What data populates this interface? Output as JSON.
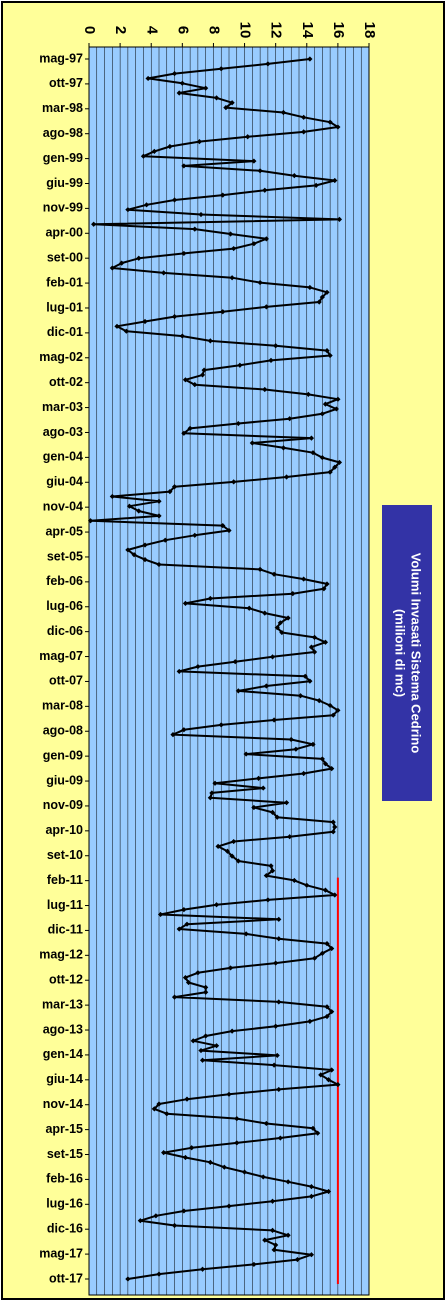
{
  "chart_data": {
    "type": "line",
    "orientation": "rotated-90",
    "title": "Volumi Invasati Sistema Cedrino",
    "subtitle": "(milioni di mc)",
    "ylim": [
      0,
      18
    ],
    "y_ticks": [
      "0",
      "2",
      "4",
      "6",
      "8",
      "10",
      "12",
      "14",
      "16",
      "18"
    ],
    "grid": true,
    "x_tick_labels": [
      "mag-97",
      "ott-97",
      "mar-98",
      "ago-98",
      "gen-99",
      "giu-99",
      "nov-99",
      "apr-00",
      "set-00",
      "feb-01",
      "lug-01",
      "dic-01",
      "mag-02",
      "ott-02",
      "mar-03",
      "ago-03",
      "gen-04",
      "giu-04",
      "nov-04",
      "apr-05",
      "set-05",
      "feb-06",
      "lug-06",
      "dic-06",
      "mag-07",
      "ott-07",
      "mar-08",
      "ago-08",
      "gen-09",
      "giu-09",
      "nov-09",
      "apr-10",
      "set-10",
      "feb-11",
      "lug-11",
      "dic-11",
      "mag-12",
      "ott-12",
      "mar-13",
      "ago-13",
      "gen-14",
      "giu-14",
      "nov-14",
      "apr-15",
      "set-15",
      "feb-16",
      "lug-16",
      "dic-16",
      "mag-17",
      "ott-17"
    ],
    "series": [
      {
        "color": "#000000",
        "values": [
          14.2,
          11.5,
          8.5,
          5.5,
          3.8,
          6.0,
          7.5,
          5.8,
          8.2,
          9.2,
          8.8,
          12.5,
          13.8,
          15.5,
          16.0,
          13.8,
          10.2,
          7.1,
          5.2,
          4.2,
          3.5,
          10.6,
          6.1,
          11.0,
          13.2,
          15.8,
          14.6,
          11.3,
          8.6,
          5.5,
          3.7,
          2.5,
          7.2,
          16.1,
          0.3,
          6.8,
          9.1,
          11.4,
          10.6,
          9.3,
          6.1,
          3.2,
          2.1,
          1.5,
          4.8,
          9.2,
          11.0,
          14.2,
          15.3,
          15.0,
          14.8,
          11.4,
          8.6,
          5.5,
          3.6,
          1.8,
          2.4,
          6.0,
          7.8,
          12.0,
          15.3,
          15.5,
          11.7,
          9.7,
          7.4,
          7.3,
          6.2,
          6.8,
          11.3,
          14.1,
          16.0,
          15.2,
          15.9,
          15.0,
          12.9,
          9.6,
          6.5,
          6.1,
          14.3,
          10.5,
          12.5,
          14.4,
          15.0,
          16.1,
          15.8,
          15.5,
          12.7,
          9.3,
          5.5,
          5.2,
          1.5,
          4.5,
          2.6,
          3.2,
          4.5,
          0.1,
          8.6,
          9.0,
          6.8,
          4.9,
          3.6,
          2.5,
          2.9,
          3.6,
          4.5,
          11.0,
          11.9,
          13.8,
          15.3,
          15.1,
          13.1,
          7.8,
          6.2,
          10.3,
          11.3,
          12.8,
          12.3,
          12.1,
          12.4,
          14.5,
          15.2,
          14.3,
          14.5,
          11.8,
          9.4,
          7.0,
          5.8,
          13.9,
          14.2,
          11.4,
          9.6,
          13.6,
          14.8,
          15.5,
          16.0,
          15.7,
          11.9,
          8.5,
          6.1,
          5.4,
          13.0,
          14.4,
          13.3,
          10.1,
          15.0,
          15.2,
          15.6,
          13.8,
          10.9,
          8.1,
          11.2,
          7.9,
          7.8,
          12.7,
          10.6,
          11.8,
          12.1,
          15.7,
          15.8,
          15.7,
          12.9,
          9.3,
          8.3,
          8.9,
          9.2,
          9.6,
          11.7,
          11.8,
          11.4,
          13.2,
          14.0,
          15.2,
          15.8,
          11.5,
          8.2,
          6.1,
          4.6,
          12.2,
          6.3,
          5.8,
          10.1,
          12.2,
          15.3,
          15.6,
          15.0,
          14.5,
          12.0,
          9.1,
          7.0,
          6.2,
          6.4,
          7.5,
          7.5,
          5.5,
          12.2,
          15.3,
          15.6,
          15.3,
          14.2,
          12.0,
          9.2,
          7.5,
          6.7,
          8.2,
          7.2,
          12.1,
          7.3,
          11.9,
          15.6,
          14.9,
          15.4,
          16.0,
          12.2,
          9.0,
          6.3,
          4.5,
          4.2,
          5.0,
          9.5,
          11.4,
          14.4,
          14.7,
          12.3,
          9.5,
          6.6,
          4.8,
          6.2,
          7.8,
          8.7,
          10.0,
          11.2,
          12.8,
          14.3,
          15.4,
          14.3,
          11.8,
          9.0,
          6.1,
          4.3,
          3.3,
          5.5,
          11.8,
          12.8,
          11.3,
          12.0,
          11.9,
          14.3,
          13.4,
          10.6,
          7.3,
          4.5,
          2.5
        ]
      }
    ],
    "threshold": {
      "value": 16.0,
      "from_label": "feb-11",
      "to_label": "ott-17",
      "color": "#ff0000"
    }
  }
}
